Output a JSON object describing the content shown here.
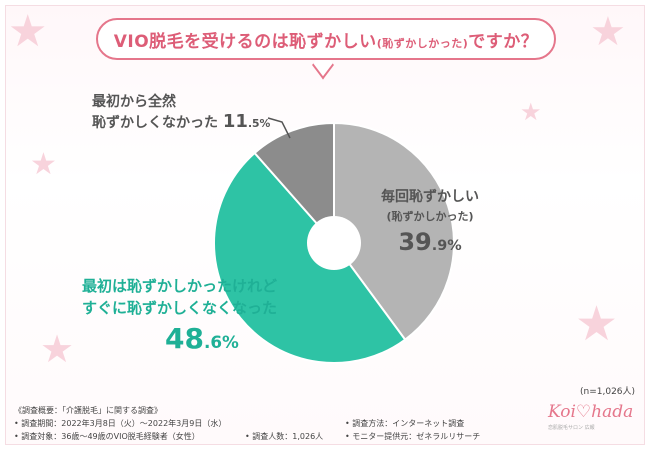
{
  "title": {
    "main": "VIO脱毛を受けるのは恥ずかしい",
    "sub": "(恥ずかしかった)",
    "tail": "ですか？"
  },
  "chart_data": {
    "type": "pie",
    "n_label": "(n=1,026人)",
    "slices": [
      {
        "line1": "毎回恥ずかしい",
        "line2": "(恥ずかしかった)",
        "value": 39.9,
        "int": "39",
        "dec": ".9%",
        "color": "#b4b4b4"
      },
      {
        "line1": "最初は恥ずかしかったけれど",
        "line2": "すぐに恥ずかしくなくなった",
        "value": 48.6,
        "int": "48",
        "dec": ".6%",
        "color": "#2ec3a5"
      },
      {
        "line1": "最初から全然",
        "line2": "恥ずかしくなかった",
        "value": 11.5,
        "int": "11",
        "dec": ".5%",
        "color": "#8c8c8c"
      }
    ]
  },
  "footer": {
    "overview": "《調査概要：「介護脱毛」に関する調査》",
    "period": "• 調査期間：2022年3月8日（火）〜2022年3月9日（水）",
    "target": "• 調査対象：36歳〜49歳のVIO脱毛経験者（女性）",
    "count": "• 調査人数：1,026人",
    "method": "• 調査方法：インターネット調査",
    "provider": "• モニター提供元：ゼネラルリサーチ"
  },
  "logo": {
    "text": "Koi♡hada",
    "sub": "恋肌脱毛サロン 広報"
  },
  "colors": {
    "accent": "#e5768b",
    "teal": "#2ec3a5",
    "gray_light": "#b4b4b4",
    "gray_dark": "#8c8c8c"
  }
}
